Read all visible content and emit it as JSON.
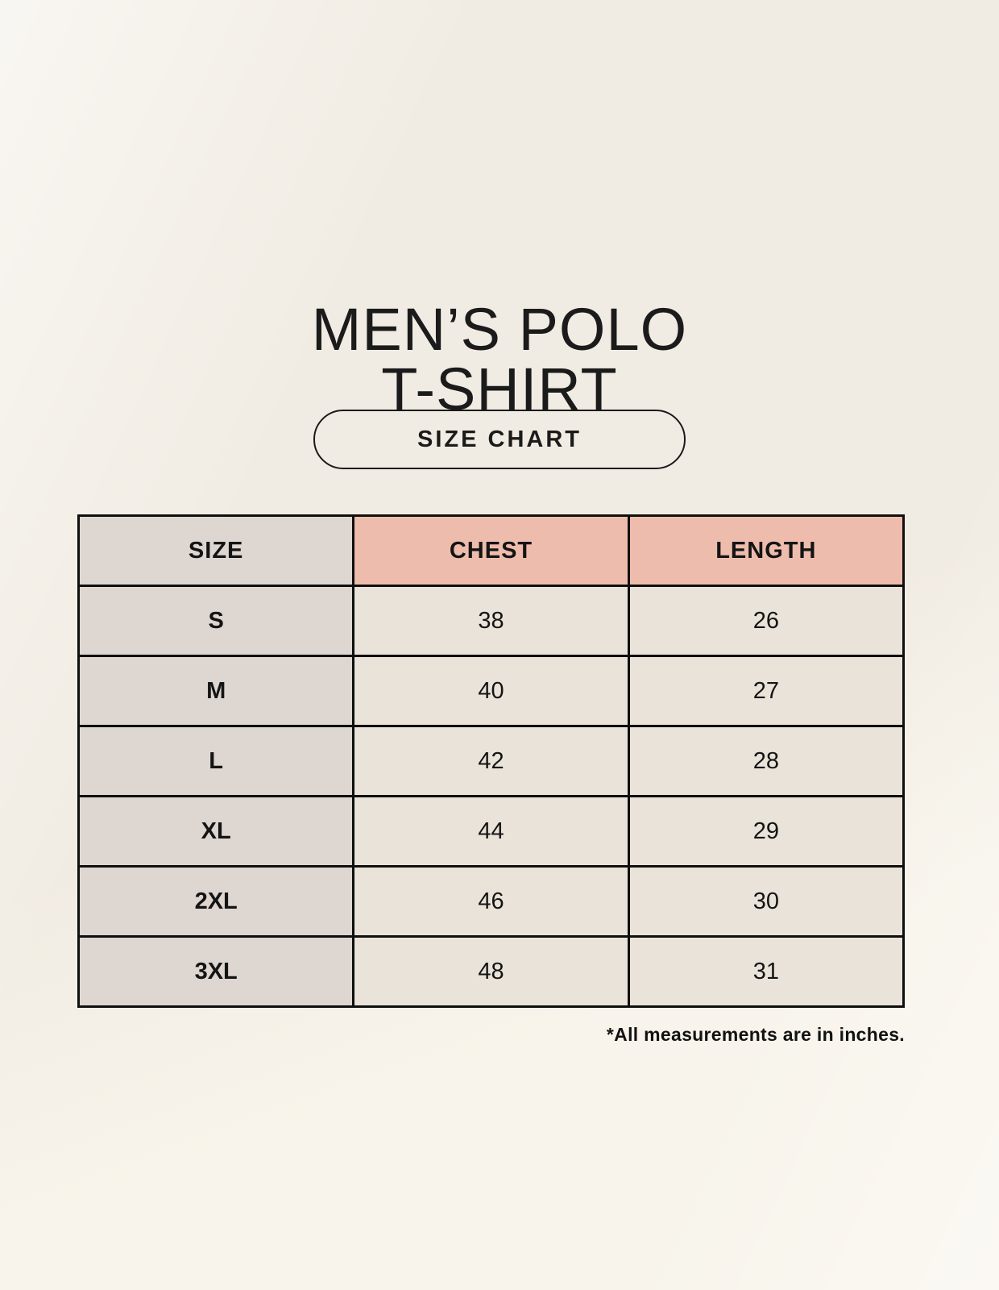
{
  "page": {
    "title_line1": "MEN’S POLO",
    "title_line2": "T-SHIRT",
    "badge_label": "SIZE CHART",
    "footnote": "*All measurements are in inches."
  },
  "colors": {
    "background": "#f8f4eb",
    "size_column_bg": "#ddd6d1",
    "header_accent_bg": "#eebcad",
    "data_cell_bg": "#e9e3d9",
    "border": "#0f0f0f",
    "text": "#141414"
  },
  "chart_data": {
    "type": "table",
    "title": "MEN’S POLO T-SHIRT — SIZE CHART",
    "columns": [
      "SIZE",
      "CHEST",
      "LENGTH"
    ],
    "units": "inches",
    "rows": [
      {
        "size": "S",
        "chest": "38",
        "length": "26"
      },
      {
        "size": "M",
        "chest": "40",
        "length": "27"
      },
      {
        "size": "L",
        "chest": "42",
        "length": "28"
      },
      {
        "size": "XL",
        "chest": "44",
        "length": "29"
      },
      {
        "size": "2XL",
        "chest": "46",
        "length": "30"
      },
      {
        "size": "3XL",
        "chest": "48",
        "length": "31"
      }
    ]
  }
}
